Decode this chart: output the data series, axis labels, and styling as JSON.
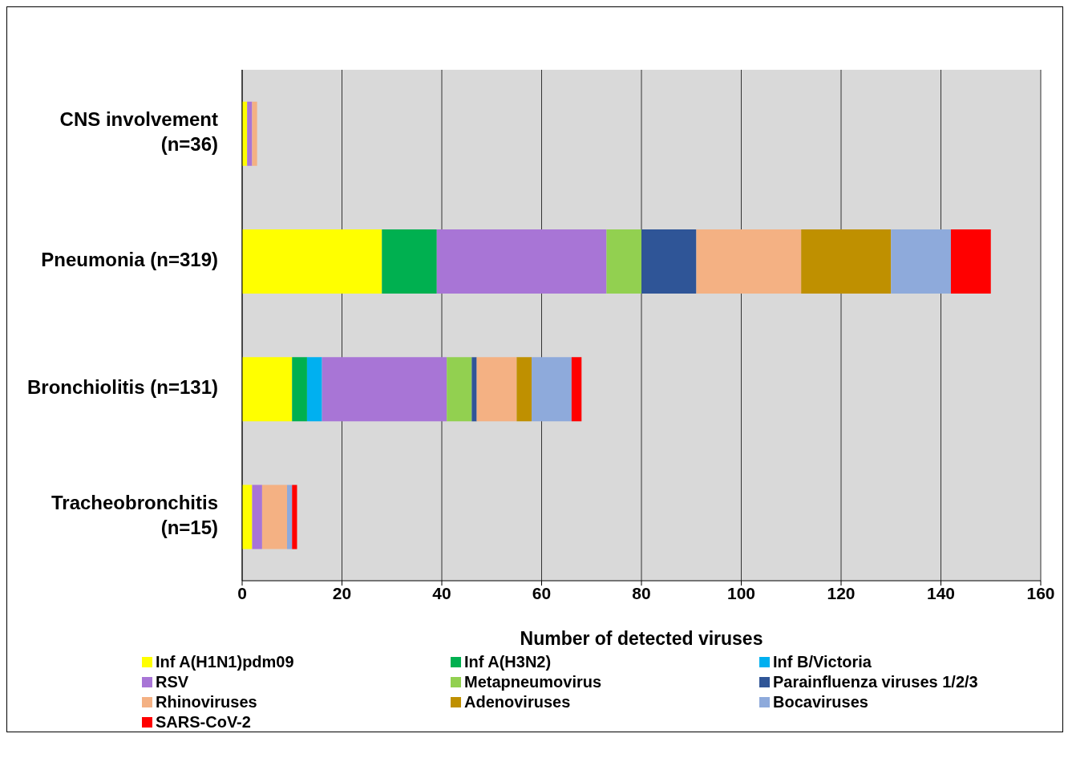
{
  "chart_data": {
    "type": "bar",
    "orientation": "horizontal",
    "stacked": true,
    "xlabel": "Number of detected viruses",
    "categories": [
      "CNS involvement\n(n=36)",
      "Pneumonia (n=319)",
      "Bronchiolitis (n=131)",
      "Tracheobronchitis\n(n=15)"
    ],
    "series": [
      {
        "name": "Inf A(H1N1)pdm09",
        "color": "#ffff00",
        "values": [
          1,
          28,
          10,
          2
        ]
      },
      {
        "name": "Inf A(H3N2)",
        "color": "#00b050",
        "values": [
          0,
          11,
          3,
          0
        ]
      },
      {
        "name": "Inf B/Victoria",
        "color": "#00b0f0",
        "values": [
          0,
          0,
          3,
          0
        ]
      },
      {
        "name": "RSV",
        "color": "#a875d6",
        "values": [
          1,
          34,
          25,
          2
        ]
      },
      {
        "name": "Metapneumovirus",
        "color": "#92d050",
        "values": [
          0,
          7,
          5,
          0
        ]
      },
      {
        "name": "Parainfluenza viruses 1/2/3",
        "color": "#2f5597",
        "values": [
          0,
          11,
          1,
          0
        ]
      },
      {
        "name": "Rhinoviruses",
        "color": "#f4b183",
        "values": [
          1,
          21,
          8,
          5
        ]
      },
      {
        "name": "Adenoviruses",
        "color": "#bf9000",
        "values": [
          0,
          18,
          3,
          0
        ]
      },
      {
        "name": "Bocaviruses",
        "color": "#8eaadb",
        "values": [
          0,
          12,
          8,
          1
        ]
      },
      {
        "name": "SARS-CoV-2",
        "color": "#ff0000",
        "values": [
          0,
          8,
          2,
          1
        ]
      }
    ],
    "xlim": [
      0,
      160
    ],
    "xticks": [
      0,
      20,
      40,
      60,
      80,
      100,
      120,
      140,
      160
    ],
    "grid": "x",
    "legend": "bottom"
  }
}
